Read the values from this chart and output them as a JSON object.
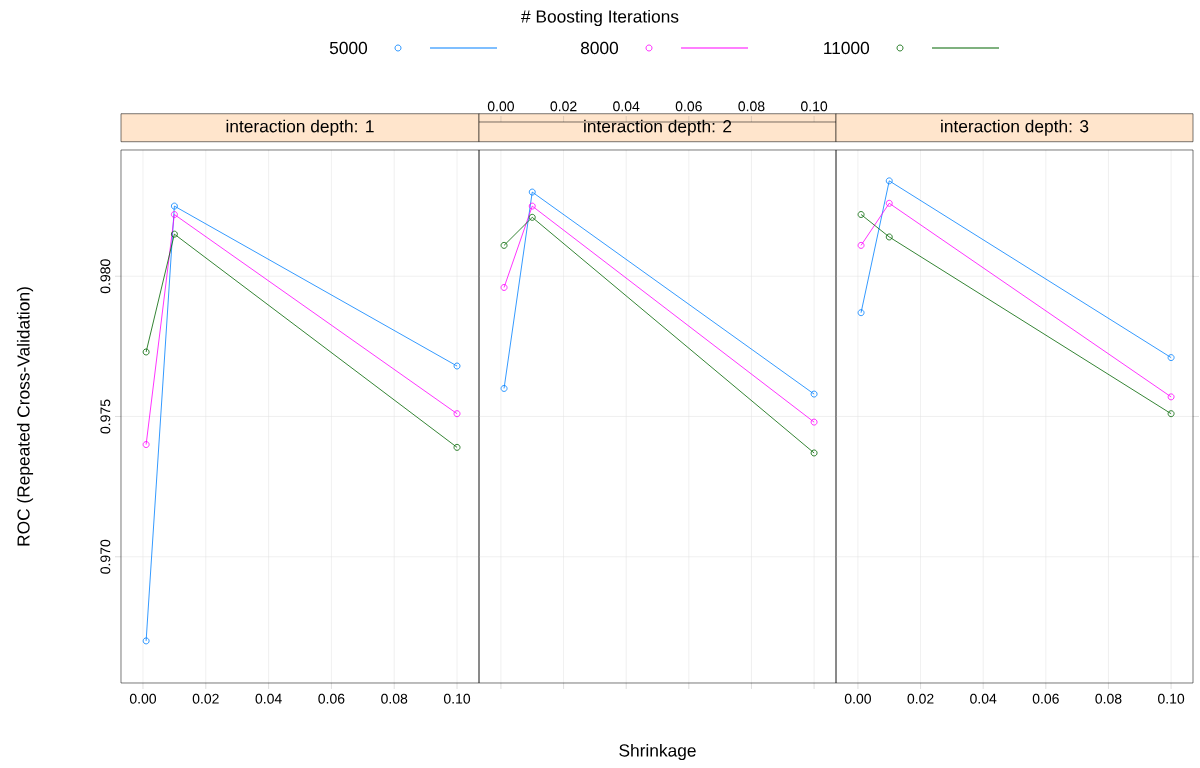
{
  "chart_data": [
    {
      "type": "line",
      "title": "interaction depth: 1",
      "ylabel": "ROC (Repeated Cross-Validation)",
      "legend_title": "# Boosting Iterations",
      "legend": "top",
      "grid": true,
      "marker": "circle",
      "line_style": "solid",
      "x": [
        0.001,
        0.01,
        0.1
      ],
      "xlim": [
        -0.007,
        0.107
      ],
      "ylim": [
        0.9655,
        0.9845
      ],
      "xticks": [
        {
          "value": 0,
          "label": "0.00"
        },
        {
          "value": 0.02,
          "label": "0.02"
        },
        {
          "value": 0.04,
          "label": "0.04"
        },
        {
          "value": 0.06,
          "label": "0.06"
        },
        {
          "value": 0.08,
          "label": "0.08"
        },
        {
          "value": 0.1,
          "label": "0.10"
        }
      ],
      "yticks": [
        {
          "value": 0.97,
          "label": "0.970"
        },
        {
          "value": 0.975,
          "label": "0.975"
        },
        {
          "value": 0.98,
          "label": "0.980"
        }
      ],
      "series": [
        {
          "name": "5000",
          "color": "#0080ff",
          "values": [
            0.967,
            0.9825,
            0.9768
          ]
        },
        {
          "name": "8000",
          "color": "#ff00ff",
          "values": [
            0.974,
            0.9822,
            0.9751
          ]
        },
        {
          "name": "11000",
          "color": "#006400",
          "values": [
            0.9773,
            0.9815,
            0.9739
          ]
        }
      ]
    },
    {
      "type": "line",
      "title": "interaction depth: 2",
      "xlabel": "Shrinkage",
      "grid": true,
      "marker": "circle",
      "line_style": "solid",
      "tick_labels": "x",
      "x": [
        0.001,
        0.01,
        0.1
      ],
      "xlim": [
        -0.007,
        0.107
      ],
      "ylim": [
        0.9655,
        0.9845
      ],
      "xticks": [
        {
          "value": 0,
          "label": "0.00"
        },
        {
          "value": 0.02,
          "label": "0.02"
        },
        {
          "value": 0.04,
          "label": "0.04"
        },
        {
          "value": 0.06,
          "label": "0.06"
        },
        {
          "value": 0.08,
          "label": "0.08"
        },
        {
          "value": 0.1,
          "label": "0.10"
        }
      ],
      "yticks": [
        {
          "value": 0.97,
          "label": null
        },
        {
          "value": 0.975,
          "label": null
        },
        {
          "value": 0.98,
          "label": null
        }
      ],
      "series": [
        {
          "color": "#0080ff",
          "values": [
            0.976,
            0.983,
            0.9758
          ]
        },
        {
          "color": "#ff00ff",
          "values": [
            0.9796,
            0.9825,
            0.9748
          ]
        },
        {
          "color": "#006400",
          "values": [
            0.9811,
            0.9821,
            0.9737
          ]
        }
      ]
    },
    {
      "type": "line",
      "title": "interaction depth: 3",
      "grid": true,
      "marker": "circle",
      "line_style": "solid",
      "tick_labels": "x",
      "x": [
        0.001,
        0.01,
        0.1
      ],
      "xlim": [
        -0.007,
        0.107
      ],
      "ylim": [
        0.9655,
        0.9845
      ],
      "xticks": [
        {
          "value": 0,
          "label": "0.00"
        },
        {
          "value": 0.02,
          "label": "0.02"
        },
        {
          "value": 0.04,
          "label": "0.04"
        },
        {
          "value": 0.06,
          "label": "0.06"
        },
        {
          "value": 0.08,
          "label": "0.08"
        },
        {
          "value": 0.1,
          "label": "0.10"
        }
      ],
      "yticks": [
        {
          "value": 0.97,
          "label": null
        },
        {
          "value": 0.975,
          "label": null
        },
        {
          "value": 0.98,
          "label": null
        }
      ],
      "series": [
        {
          "color": "#0080ff",
          "values": [
            0.9787,
            0.9834,
            0.9771
          ]
        },
        {
          "color": "#ff00ff",
          "values": [
            0.9811,
            0.9826,
            0.9757
          ]
        },
        {
          "color": "#006400",
          "values": [
            0.9822,
            0.9814,
            0.9751
          ]
        }
      ]
    }
  ]
}
